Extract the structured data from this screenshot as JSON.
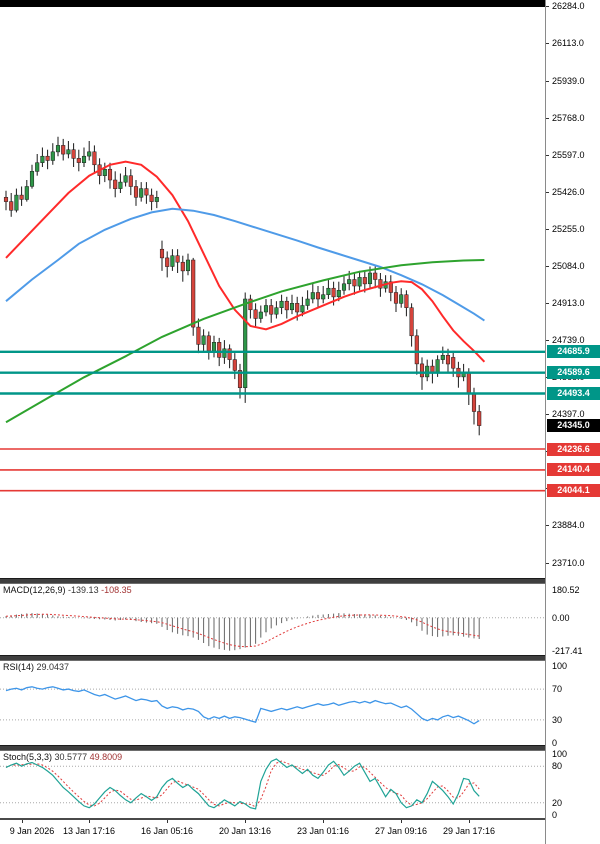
{
  "colors": {
    "up": "#2e9648",
    "down": "#d5443c",
    "wick": "#1a1a1a",
    "support": "#009688",
    "resistance": "#e53935",
    "current_tag": "#000000",
    "macd_hist": "#666666",
    "signal": "#e03a3a",
    "rsi_line": "#3d95e8",
    "stoch_k": "#1fa396",
    "stoch_d": "#e03a3a",
    "grid_dotted": "#a8a8a8"
  },
  "levels": {
    "lines": [
      {
        "label": "24685.9",
        "price": 24685.9,
        "color_kind": "teal"
      },
      {
        "label": "24589.6",
        "price": 24589.6,
        "color_kind": "teal"
      },
      {
        "label": "24493.4",
        "price": 24493.4,
        "color_kind": "teal"
      },
      {
        "label": "24236.6",
        "price": 24236.6,
        "color_kind": "red"
      },
      {
        "label": "24140.4",
        "price": 24140.4,
        "color_kind": "red"
      },
      {
        "label": "24044.1",
        "price": 24044.1,
        "color_kind": "red"
      }
    ],
    "current_price": {
      "label": "24345.0",
      "price": 24345.0
    }
  },
  "chart_data": {
    "type": "candlestick",
    "y_axis": {
      "max": 26311.7,
      "min": 23640.7,
      "ticks": [
        "26284.0",
        "26113.0",
        "25939.0",
        "25768.0",
        "25597.0",
        "25426.0",
        "25255.0",
        "25084.0",
        "24913.0",
        "24739.0",
        "24568.0",
        "24397.0",
        "24226.0",
        "24055.0",
        "23884.0",
        "23710.0"
      ]
    },
    "x_axis": {
      "bars_total": 92,
      "labels": [
        {
          "text": "9 Jan 2026",
          "bar": 3
        },
        {
          "text": "13 Jan 17:16",
          "bar": 16
        },
        {
          "text": "16 Jan 05:16",
          "bar": 31
        },
        {
          "text": "20 Jan 13:16",
          "bar": 46
        },
        {
          "text": "23 Jan 01:16",
          "bar": 61
        },
        {
          "text": "27 Jan 09:16",
          "bar": 76
        },
        {
          "text": "29 Jan 17:16",
          "bar": 89
        }
      ]
    },
    "candles": [
      [
        25400,
        25430,
        25340,
        25380
      ],
      [
        25380,
        25420,
        25310,
        25340
      ],
      [
        25340,
        25440,
        25330,
        25410
      ],
      [
        25410,
        25450,
        25360,
        25390
      ],
      [
        25390,
        25480,
        25380,
        25450
      ],
      [
        25450,
        25550,
        25440,
        25520
      ],
      [
        25520,
        25600,
        25500,
        25560
      ],
      [
        25560,
        25630,
        25540,
        25590
      ],
      [
        25590,
        25620,
        25530,
        25570
      ],
      [
        25570,
        25650,
        25550,
        25610
      ],
      [
        25610,
        25680,
        25590,
        25640
      ],
      [
        25640,
        25670,
        25570,
        25600
      ],
      [
        25600,
        25660,
        25580,
        25620
      ],
      [
        25620,
        25650,
        25540,
        25580
      ],
      [
        25580,
        25620,
        25520,
        25560
      ],
      [
        25560,
        25630,
        25540,
        25590
      ],
      [
        25590,
        25660,
        25570,
        25610
      ],
      [
        25610,
        25640,
        25510,
        25550
      ],
      [
        25550,
        25580,
        25460,
        25500
      ],
      [
        25500,
        25560,
        25470,
        25530
      ],
      [
        25530,
        25560,
        25440,
        25480
      ],
      [
        25480,
        25520,
        25400,
        25440
      ],
      [
        25440,
        25510,
        25420,
        25470
      ],
      [
        25470,
        25540,
        25450,
        25500
      ],
      [
        25500,
        25530,
        25410,
        25450
      ],
      [
        25450,
        25480,
        25360,
        25400
      ],
      [
        25400,
        25470,
        25380,
        25440
      ],
      [
        25440,
        25470,
        25370,
        25410
      ],
      [
        25410,
        25440,
        25340,
        25380
      ],
      [
        25380,
        25430,
        25350,
        25400
      ],
      [
        25160,
        25200,
        25060,
        25120
      ],
      [
        25120,
        25150,
        25030,
        25080
      ],
      [
        25080,
        25160,
        25060,
        25130
      ],
      [
        25130,
        25160,
        25050,
        25100
      ],
      [
        25100,
        25130,
        25010,
        25060
      ],
      [
        25060,
        25140,
        25040,
        25110
      ],
      [
        25110,
        25120,
        24760,
        24800
      ],
      [
        24800,
        24840,
        24680,
        24720
      ],
      [
        24720,
        24790,
        24690,
        24760
      ],
      [
        24760,
        24780,
        24650,
        24690
      ],
      [
        24690,
        24760,
        24660,
        24730
      ],
      [
        24730,
        24750,
        24620,
        24660
      ],
      [
        24660,
        24740,
        24630,
        24700
      ],
      [
        24700,
        24720,
        24610,
        24650
      ],
      [
        24650,
        24680,
        24560,
        24600
      ],
      [
        24600,
        24630,
        24470,
        24520
      ],
      [
        24520,
        24960,
        24450,
        24930
      ],
      [
        24930,
        24950,
        24840,
        24880
      ],
      [
        24880,
        24910,
        24800,
        24840
      ],
      [
        24840,
        24900,
        24820,
        24870
      ],
      [
        24870,
        24930,
        24850,
        24900
      ],
      [
        24900,
        24930,
        24820,
        24860
      ],
      [
        24860,
        24920,
        24840,
        24890
      ],
      [
        24890,
        24950,
        24860,
        24920
      ],
      [
        24920,
        24940,
        24840,
        24880
      ],
      [
        24880,
        24950,
        24860,
        24910
      ],
      [
        24910,
        24940,
        24830,
        24870
      ],
      [
        24870,
        24940,
        24850,
        24900
      ],
      [
        24900,
        24970,
        24880,
        24930
      ],
      [
        24930,
        25000,
        24910,
        24960
      ],
      [
        24960,
        24990,
        24890,
        24930
      ],
      [
        24930,
        24990,
        24910,
        24950
      ],
      [
        24950,
        25020,
        24930,
        24980
      ],
      [
        24980,
        25010,
        24900,
        24940
      ],
      [
        24940,
        25010,
        24920,
        24970
      ],
      [
        24970,
        25040,
        24950,
        25000
      ],
      [
        25000,
        25060,
        24970,
        25020
      ],
      [
        25020,
        25050,
        24950,
        24990
      ],
      [
        24990,
        25060,
        24970,
        25030
      ],
      [
        25030,
        25060,
        24960,
        25000
      ],
      [
        25000,
        25080,
        24980,
        25050
      ],
      [
        25050,
        25080,
        24980,
        25020
      ],
      [
        25020,
        25050,
        24940,
        24980
      ],
      [
        24980,
        25040,
        24960,
        25010
      ],
      [
        25010,
        25040,
        24920,
        24960
      ],
      [
        24960,
        24990,
        24870,
        24910
      ],
      [
        24910,
        24980,
        24890,
        24950
      ],
      [
        24950,
        24970,
        24850,
        24890
      ],
      [
        24890,
        24910,
        24710,
        24760
      ],
      [
        24760,
        24790,
        24580,
        24630
      ],
      [
        24630,
        24660,
        24510,
        24570
      ],
      [
        24570,
        24650,
        24550,
        24620
      ],
      [
        24620,
        24650,
        24540,
        24590
      ],
      [
        24590,
        24670,
        24570,
        24650
      ],
      [
        24650,
        24710,
        24630,
        24670
      ],
      [
        24670,
        24700,
        24590,
        24630
      ],
      [
        24660,
        24690,
        24570,
        24610
      ],
      [
        24610,
        24640,
        24520,
        24570
      ],
      [
        24570,
        24630,
        24550,
        24590
      ],
      [
        24590,
        24610,
        24440,
        24490
      ],
      [
        24490,
        24520,
        24350,
        24410
      ],
      [
        24410,
        24440,
        24300,
        24345
      ]
    ],
    "overlays": [
      {
        "name": "ma-fast-red",
        "color": "#ff2a2a",
        "points": [
          [
            0,
            25120
          ],
          [
            4,
            25220
          ],
          [
            8,
            25320
          ],
          [
            12,
            25420
          ],
          [
            16,
            25500
          ],
          [
            20,
            25550
          ],
          [
            23,
            25565
          ],
          [
            26,
            25550
          ],
          [
            29,
            25495
          ],
          [
            32,
            25410
          ],
          [
            35,
            25290
          ],
          [
            38,
            25140
          ],
          [
            41,
            24990
          ],
          [
            44,
            24880
          ],
          [
            47,
            24805
          ],
          [
            50,
            24790
          ],
          [
            53,
            24815
          ],
          [
            56,
            24850
          ],
          [
            59,
            24880
          ],
          [
            62,
            24910
          ],
          [
            65,
            24940
          ],
          [
            68,
            24965
          ],
          [
            71,
            24985
          ],
          [
            74,
            25005
          ],
          [
            76,
            25012
          ],
          [
            78,
            25008
          ],
          [
            80,
            24975
          ],
          [
            82,
            24920
          ],
          [
            84,
            24850
          ],
          [
            86,
            24785
          ],
          [
            88,
            24735
          ],
          [
            90,
            24690
          ],
          [
            92,
            24640
          ]
        ]
      },
      {
        "name": "ma-mid-blue",
        "color": "#4f9be8",
        "points": [
          [
            0,
            24920
          ],
          [
            5,
            25020
          ],
          [
            10,
            25110
          ],
          [
            14,
            25185
          ],
          [
            19,
            25250
          ],
          [
            24,
            25300
          ],
          [
            28,
            25330
          ],
          [
            32,
            25347
          ],
          [
            36,
            25338
          ],
          [
            40,
            25318
          ],
          [
            44,
            25290
          ],
          [
            48,
            25260
          ],
          [
            52,
            25230
          ],
          [
            56,
            25200
          ],
          [
            60,
            25168
          ],
          [
            64,
            25138
          ],
          [
            68,
            25108
          ],
          [
            72,
            25078
          ],
          [
            76,
            25040
          ],
          [
            80,
            24998
          ],
          [
            84,
            24948
          ],
          [
            87,
            24905
          ],
          [
            90,
            24862
          ],
          [
            92,
            24830
          ]
        ]
      },
      {
        "name": "ma-slow-green",
        "color": "#2ea32e",
        "points": [
          [
            0,
            24360
          ],
          [
            8,
            24472
          ],
          [
            15,
            24568
          ],
          [
            23,
            24665
          ],
          [
            30,
            24755
          ],
          [
            38,
            24838
          ],
          [
            46,
            24908
          ],
          [
            53,
            24965
          ],
          [
            61,
            25016
          ],
          [
            68,
            25056
          ],
          [
            76,
            25086
          ],
          [
            82,
            25100
          ],
          [
            88,
            25108
          ],
          [
            92,
            25110
          ]
        ]
      }
    ],
    "indicators": {
      "macd": {
        "label": "MACD(12,26,9)",
        "macd_value": "-139.13",
        "signal_value": "-108.35",
        "scale": [
          "180.52",
          "0.00",
          "-217.41"
        ],
        "range": [
          -217.41,
          180.52
        ],
        "values": [
          10,
          15,
          20,
          25,
          28,
          30,
          28,
          25,
          20,
          15,
          10,
          8,
          5,
          3,
          0,
          -3,
          -5,
          -8,
          -10,
          -12,
          -15,
          -18,
          -15,
          -12,
          -15,
          -22,
          -28,
          -32,
          -36,
          -40,
          -60,
          -80,
          -95,
          -105,
          -115,
          -120,
          -130,
          -145,
          -165,
          -185,
          -195,
          -205,
          -210,
          -215,
          -212,
          -205,
          -195,
          -185,
          -170,
          -130,
          -95,
          -70,
          -50,
          -35,
          -22,
          -12,
          -5,
          0,
          8,
          14,
          18,
          21,
          24,
          27,
          30,
          28,
          26,
          24,
          22,
          20,
          18,
          15,
          12,
          10,
          5,
          0,
          -8,
          -15,
          -30,
          -55,
          -85,
          -110,
          -120,
          -125,
          -122,
          -118,
          -115,
          -118,
          -124,
          -130,
          -135,
          -139.13
        ]
      },
      "rsi": {
        "label": "RSI(14)",
        "value": "29.0437",
        "levels": [
          70,
          30
        ],
        "scale": [
          "100",
          "70",
          "30",
          "0"
        ],
        "values": [
          68,
          70,
          71,
          69,
          72,
          73,
          71,
          70,
          72,
          73,
          71,
          69,
          70,
          68,
          67,
          69,
          66,
          63,
          61,
          63,
          60,
          57,
          59,
          61,
          58,
          55,
          57,
          56,
          54,
          55,
          48,
          45,
          47,
          46,
          43,
          45,
          44,
          41,
          34,
          31,
          34,
          32,
          35,
          32,
          34,
          33,
          31,
          29,
          27,
          45,
          43,
          41,
          43,
          45,
          43,
          45,
          47,
          45,
          47,
          49,
          51,
          49,
          50,
          52,
          49,
          51,
          53,
          54,
          52,
          54,
          52,
          55,
          53,
          51,
          52,
          49,
          46,
          48,
          44,
          38,
          32,
          29,
          32,
          30,
          34,
          36,
          33,
          35,
          32,
          29,
          25,
          29.04
        ]
      },
      "stoch": {
        "label": "Stoch(5,3,3)",
        "k_value": "30.5777",
        "d_value": "49.8009",
        "levels": [
          80,
          20
        ],
        "scale": [
          "100",
          "80",
          "20",
          "0"
        ],
        "k": [
          78,
          82,
          85,
          80,
          84,
          86,
          82,
          78,
          72,
          65,
          55,
          45,
          38,
          30,
          22,
          15,
          12,
          18,
          28,
          38,
          45,
          40,
          32,
          25,
          20,
          28,
          35,
          30,
          24,
          30,
          45,
          55,
          60,
          52,
          45,
          50,
          42,
          35,
          25,
          15,
          12,
          18,
          25,
          20,
          15,
          22,
          18,
          12,
          10,
          55,
          75,
          88,
          92,
          85,
          78,
          82,
          75,
          68,
          75,
          65,
          60,
          70,
          82,
          88,
          78,
          65,
          72,
          80,
          85,
          70,
          55,
          60,
          45,
          30,
          42,
          35,
          20,
          12,
          15,
          25,
          20,
          35,
          55,
          48,
          40,
          30,
          18,
          35,
          60,
          58,
          40,
          30.58
        ]
      }
    }
  }
}
